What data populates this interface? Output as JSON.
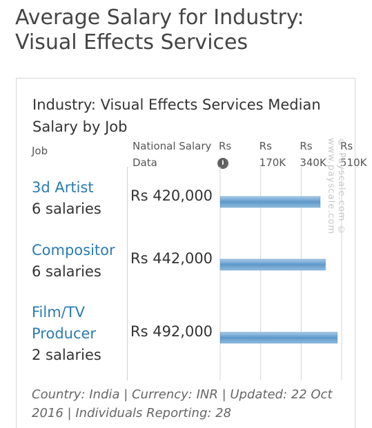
{
  "page": {
    "title": "Average Salary for Industry: Visual Effects Services"
  },
  "chart_data": {
    "type": "bar",
    "orientation": "horizontal",
    "title": "Industry: Visual Effects Services Median Salary by Job",
    "column_headers": {
      "job": "Job",
      "national": "National Salary Data"
    },
    "categories": [
      "3d Artist",
      "Compositor",
      "Film/TV Producer"
    ],
    "counts": [
      "6 salaries",
      "6 salaries",
      "2 salaries"
    ],
    "value_labels": [
      "Rs 420,000",
      "Rs 442,000",
      "Rs 492,000"
    ],
    "values": [
      420000,
      442000,
      492000
    ],
    "xlim": [
      0,
      510000
    ],
    "x_ticks": [
      0,
      170000,
      340000,
      510000
    ],
    "x_tick_labels": [
      "Rs\n0",
      "Rs\n170K",
      "Rs\n340K",
      "Rs\n510K"
    ],
    "bar_color": "#7aaed8",
    "grid": true,
    "watermark": "© Payscale.com © www.payscale.com",
    "footer": "Country: India | Currency: INR | Updated: 22 Oct 2016 | Individuals Reporting: 28"
  }
}
